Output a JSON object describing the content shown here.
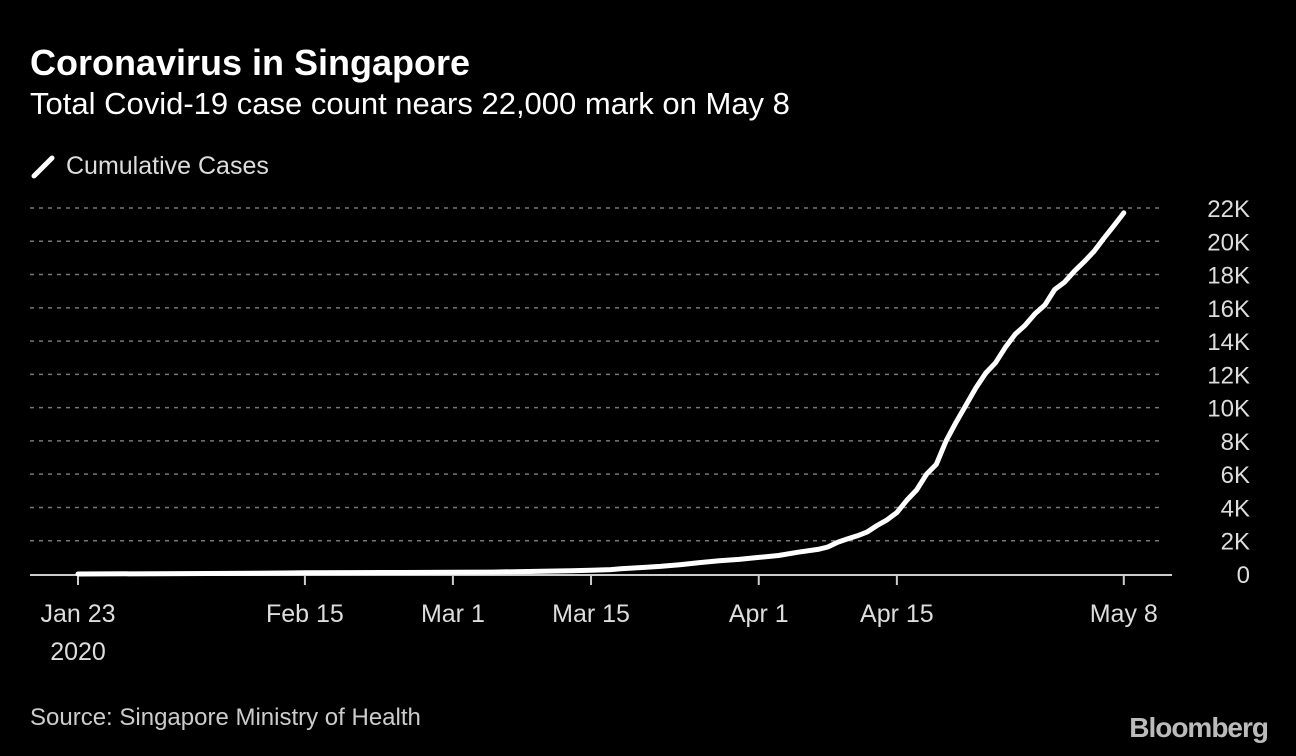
{
  "title": "Coronavirus in Singapore",
  "subtitle": "Total Covid-19 case count nears 22,000 mark on May 8",
  "source": "Source: Singapore Ministry of Health",
  "logo": "Bloomberg",
  "chart_data": {
    "type": "line",
    "legend": [
      "Cumulative Cases"
    ],
    "legend_placement": "top-left",
    "grid": true,
    "colors": {
      "background": "#000000",
      "line": "#ffffff",
      "grid": "#777777"
    },
    "ylim": [
      0,
      22000
    ],
    "y_ticks": [
      0,
      2000,
      4000,
      6000,
      8000,
      10000,
      12000,
      14000,
      16000,
      18000,
      20000,
      22000
    ],
    "y_tick_labels": [
      "0",
      "2K",
      "4K",
      "6K",
      "8K",
      "10K",
      "12K",
      "14K",
      "16K",
      "18K",
      "20K",
      "22K"
    ],
    "x_ticks": [
      "2020-01-23",
      "2020-02-15",
      "2020-03-01",
      "2020-03-15",
      "2020-04-01",
      "2020-04-15",
      "2020-05-08"
    ],
    "x_tick_labels": [
      "Jan 23",
      "Feb 15",
      "Mar 1",
      "Mar 15",
      "Apr 1",
      "Apr 15",
      "May 8"
    ],
    "x_year_label": "2020",
    "series": [
      {
        "name": "Cumulative Cases",
        "points": [
          [
            "2020-01-23",
            1
          ],
          [
            "2020-01-31",
            16
          ],
          [
            "2020-02-05",
            28
          ],
          [
            "2020-02-10",
            45
          ],
          [
            "2020-02-13",
            58
          ],
          [
            "2020-02-15",
            72
          ],
          [
            "2020-02-20",
            85
          ],
          [
            "2020-02-25",
            91
          ],
          [
            "2020-03-01",
            106
          ],
          [
            "2020-03-05",
            117
          ],
          [
            "2020-03-10",
            166
          ],
          [
            "2020-03-13",
            200
          ],
          [
            "2020-03-15",
            226
          ],
          [
            "2020-03-17",
            266
          ],
          [
            "2020-03-18",
            313
          ],
          [
            "2020-03-20",
            385
          ],
          [
            "2020-03-22",
            455
          ],
          [
            "2020-03-24",
            558
          ],
          [
            "2020-03-26",
            683
          ],
          [
            "2020-03-28",
            802
          ],
          [
            "2020-03-30",
            879
          ],
          [
            "2020-04-01",
            1000
          ],
          [
            "2020-04-03",
            1114
          ],
          [
            "2020-04-05",
            1309
          ],
          [
            "2020-04-07",
            1481
          ],
          [
            "2020-04-08",
            1623
          ],
          [
            "2020-04-09",
            1910
          ],
          [
            "2020-04-10",
            2108
          ],
          [
            "2020-04-11",
            2299
          ],
          [
            "2020-04-12",
            2532
          ],
          [
            "2020-04-13",
            2918
          ],
          [
            "2020-04-14",
            3252
          ],
          [
            "2020-04-15",
            3699
          ],
          [
            "2020-04-16",
            4427
          ],
          [
            "2020-04-17",
            5050
          ],
          [
            "2020-04-18",
            5992
          ],
          [
            "2020-04-19",
            6588
          ],
          [
            "2020-04-20",
            8014
          ],
          [
            "2020-04-21",
            9125
          ],
          [
            "2020-04-22",
            10141
          ],
          [
            "2020-04-23",
            11178
          ],
          [
            "2020-04-24",
            12075
          ],
          [
            "2020-04-25",
            12693
          ],
          [
            "2020-04-26",
            13624
          ],
          [
            "2020-04-27",
            14423
          ],
          [
            "2020-04-28",
            14951
          ],
          [
            "2020-04-29",
            15641
          ],
          [
            "2020-04-30",
            16169
          ],
          [
            "2020-05-01",
            17101
          ],
          [
            "2020-05-02",
            17548
          ],
          [
            "2020-05-03",
            18205
          ],
          [
            "2020-05-04",
            18778
          ],
          [
            "2020-05-05",
            19410
          ],
          [
            "2020-05-06",
            20198
          ],
          [
            "2020-05-07",
            20939
          ],
          [
            "2020-05-08",
            21707
          ]
        ]
      }
    ]
  }
}
